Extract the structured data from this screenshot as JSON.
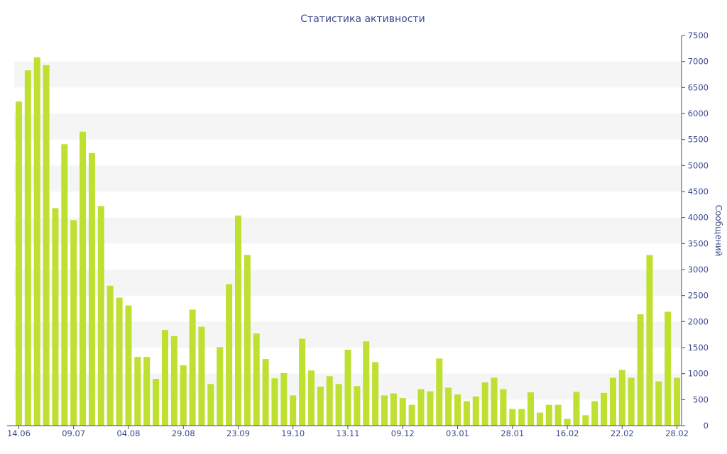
{
  "chart_data": {
    "type": "bar",
    "title": "Статистика активности",
    "xlabel": "",
    "ylabel": "Сообщений",
    "y_axis_side": "right",
    "ylim": [
      0,
      7500
    ],
    "y_ticks": [
      0,
      500,
      1000,
      1500,
      2000,
      2500,
      3000,
      3500,
      4000,
      4500,
      5000,
      5500,
      6000,
      6500,
      7000,
      7500
    ],
    "x_tick_labels": [
      {
        "label": "14.06",
        "index": 0
      },
      {
        "label": "09.07",
        "index": 6
      },
      {
        "label": "04.08",
        "index": 12
      },
      {
        "label": "29.08",
        "index": 18
      },
      {
        "label": "23.09",
        "index": 24
      },
      {
        "label": "19.10",
        "index": 30
      },
      {
        "label": "13.11",
        "index": 36
      },
      {
        "label": "09.12",
        "index": 42
      },
      {
        "label": "03.01",
        "index": 48
      },
      {
        "label": "28.01",
        "index": 54
      },
      {
        "label": "16.02",
        "index": 60
      },
      {
        "label": "22.02",
        "index": 66
      },
      {
        "label": "28.02",
        "index": 72
      }
    ],
    "values": [
      6230,
      6830,
      7080,
      6930,
      4180,
      5410,
      3950,
      5650,
      5240,
      4220,
      2690,
      2460,
      2310,
      1320,
      1320,
      900,
      1840,
      1720,
      1160,
      2230,
      1900,
      800,
      1510,
      2720,
      4040,
      3280,
      1770,
      1280,
      910,
      1010,
      580,
      1670,
      1060,
      750,
      950,
      800,
      1460,
      760,
      1620,
      1220,
      580,
      620,
      530,
      400,
      700,
      660,
      1290,
      730,
      600,
      470,
      560,
      830,
      920,
      700,
      320,
      320,
      640,
      250,
      400,
      400,
      130,
      650,
      200,
      470,
      630,
      920,
      1070,
      920,
      2140,
      3280,
      850,
      2190,
      920
    ],
    "grid": "horizontal-bands",
    "legend": "none",
    "colors": {
      "bar": "#bde031",
      "text": "#3b4a8c",
      "band": "#f5f5f5",
      "axis": "#3b4a8c"
    }
  }
}
